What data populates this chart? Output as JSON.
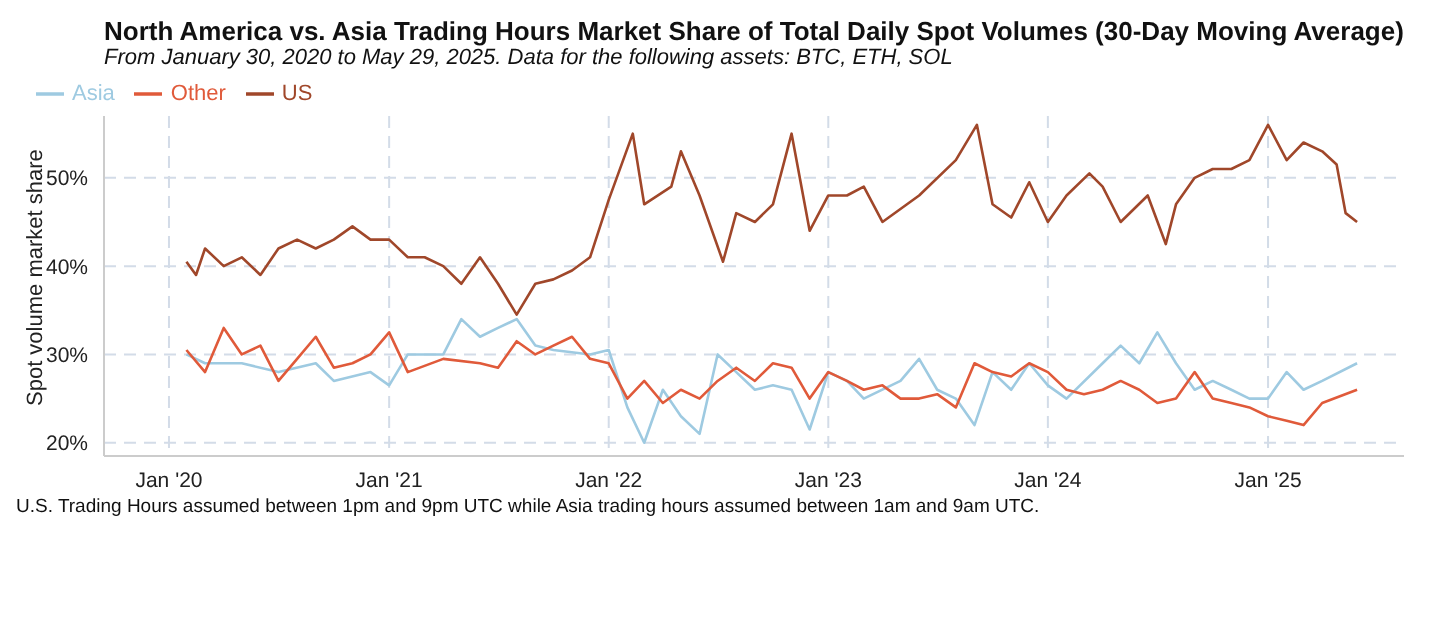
{
  "chart_data": {
    "type": "line",
    "title": "North America vs. Asia Trading Hours Market Share of Total Daily Spot Volumes (30-Day Moving Average)",
    "subtitle": "From January 30, 2020 to May 29, 2025. Data for the following assets: BTC, ETH, SOL",
    "ylabel": "Spot volume market share",
    "annotations": [
      "U.S. Trading Hours assumed between 1pm and 9pm UTC while Asia trading hours assumed between 1am and 9am UTC."
    ],
    "legend": "top left",
    "grid": true,
    "marker": "none",
    "line_style": "solid",
    "xlim": [
      "2019-09-15",
      "2025-08-15"
    ],
    "xticks": [
      {
        "value": "2020-01-01",
        "label": "Jan '20"
      },
      {
        "value": "2021-01-01",
        "label": "Jan '21"
      },
      {
        "value": "2022-01-01",
        "label": "Jan '22"
      },
      {
        "value": "2023-01-01",
        "label": "Jan '23"
      },
      {
        "value": "2024-01-01",
        "label": "Jan '24"
      },
      {
        "value": "2025-01-01",
        "label": "Jan '25"
      }
    ],
    "ylim": [
      18.5,
      57
    ],
    "yticks": [
      {
        "value": 20,
        "label": "20%"
      },
      {
        "value": 30,
        "label": "30%"
      },
      {
        "value": 40,
        "label": "40%"
      },
      {
        "value": 50,
        "label": "50%"
      }
    ],
    "series": [
      {
        "name": "Asia",
        "color": "#9ecae1",
        "x": [
          "2020-01-30",
          "2020-03-01",
          "2020-05-01",
          "2020-07-01",
          "2020-09-01",
          "2020-10-01",
          "2020-12-01",
          "2021-01-01",
          "2021-02-01",
          "2021-04-01",
          "2021-05-01",
          "2021-06-01",
          "2021-07-01",
          "2021-08-01",
          "2021-09-01",
          "2021-10-01",
          "2021-12-01",
          "2022-01-01",
          "2022-02-01",
          "2022-03-01",
          "2022-04-01",
          "2022-05-01",
          "2022-06-01",
          "2022-07-01",
          "2022-08-01",
          "2022-09-01",
          "2022-10-01",
          "2022-11-01",
          "2022-12-01",
          "2023-01-01",
          "2023-02-01",
          "2023-03-01",
          "2023-05-01",
          "2023-06-01",
          "2023-07-01",
          "2023-08-01",
          "2023-09-01",
          "2023-10-01",
          "2023-11-01",
          "2023-12-01",
          "2024-01-01",
          "2024-02-01",
          "2024-04-01",
          "2024-05-01",
          "2024-06-01",
          "2024-07-01",
          "2024-08-01",
          "2024-09-01",
          "2024-10-01",
          "2024-11-01",
          "2024-12-01",
          "2025-01-01",
          "2025-02-01",
          "2025-03-01",
          "2025-04-01",
          "2025-05-29"
        ],
        "values": [
          30,
          29,
          29,
          28,
          29,
          27,
          28,
          26.5,
          30,
          30,
          34,
          32,
          33,
          34,
          31,
          30.5,
          30,
          30.5,
          24,
          20,
          26,
          23,
          21,
          30,
          28,
          26,
          26.5,
          26,
          21.5,
          28,
          27,
          25,
          27,
          29.5,
          26,
          25,
          22,
          28,
          26,
          29,
          26.5,
          25,
          29,
          31,
          29,
          32.5,
          29,
          26,
          27,
          26,
          25,
          25,
          28,
          26,
          27,
          29
        ]
      },
      {
        "name": "Other",
        "color": "#e05a3a",
        "x": [
          "2020-01-30",
          "2020-03-01",
          "2020-04-01",
          "2020-05-01",
          "2020-06-01",
          "2020-07-01",
          "2020-08-01",
          "2020-09-01",
          "2020-10-01",
          "2020-11-01",
          "2020-12-01",
          "2021-01-01",
          "2021-02-01",
          "2021-04-01",
          "2021-06-01",
          "2021-07-01",
          "2021-08-01",
          "2021-09-01",
          "2021-10-01",
          "2021-11-01",
          "2021-12-01",
          "2022-01-01",
          "2022-02-01",
          "2022-03-01",
          "2022-04-01",
          "2022-05-01",
          "2022-06-01",
          "2022-07-01",
          "2022-08-01",
          "2022-09-01",
          "2022-10-01",
          "2022-11-01",
          "2022-12-01",
          "2023-01-01",
          "2023-02-01",
          "2023-03-01",
          "2023-04-01",
          "2023-05-01",
          "2023-06-01",
          "2023-07-01",
          "2023-08-01",
          "2023-09-01",
          "2023-10-01",
          "2023-11-01",
          "2023-12-01",
          "2024-01-01",
          "2024-02-01",
          "2024-03-01",
          "2024-04-01",
          "2024-05-01",
          "2024-06-01",
          "2024-07-01",
          "2024-08-01",
          "2024-09-01",
          "2024-10-01",
          "2024-11-01",
          "2024-12-01",
          "2025-01-01",
          "2025-02-01",
          "2025-03-01",
          "2025-04-01",
          "2025-05-29"
        ],
        "values": [
          30.5,
          28,
          33,
          30,
          31,
          27,
          29.5,
          32,
          28.5,
          29,
          30,
          32.5,
          28,
          29.5,
          29,
          28.5,
          31.5,
          30,
          31,
          32,
          29.5,
          29,
          25,
          27,
          24.5,
          26,
          25,
          27,
          28.5,
          27,
          29,
          28.5,
          25,
          28,
          27,
          26,
          26.5,
          25,
          25,
          25.5,
          24,
          29,
          28,
          27.5,
          29,
          28,
          26,
          25.5,
          26,
          27,
          26,
          24.5,
          25,
          28,
          25,
          24.5,
          24,
          23,
          22.5,
          22,
          24.5,
          26
        ]
      },
      {
        "name": "US",
        "color": "#a0472a",
        "x": [
          "2020-01-30",
          "2020-02-15",
          "2020-03-01",
          "2020-04-01",
          "2020-05-01",
          "2020-06-01",
          "2020-07-01",
          "2020-08-01",
          "2020-09-01",
          "2020-10-01",
          "2020-11-01",
          "2020-12-01",
          "2021-01-01",
          "2021-02-01",
          "2021-03-01",
          "2021-04-01",
          "2021-05-01",
          "2021-06-01",
          "2021-07-01",
          "2021-08-01",
          "2021-09-01",
          "2021-10-01",
          "2021-11-01",
          "2021-12-01",
          "2022-01-01",
          "2022-02-10",
          "2022-03-01",
          "2022-04-15",
          "2022-05-01",
          "2022-06-01",
          "2022-07-10",
          "2022-08-01",
          "2022-09-01",
          "2022-10-01",
          "2022-11-01",
          "2022-12-01",
          "2023-01-01",
          "2023-02-01",
          "2023-03-01",
          "2023-04-01",
          "2023-06-01",
          "2023-08-01",
          "2023-09-05",
          "2023-10-01",
          "2023-11-01",
          "2023-12-01",
          "2024-01-01",
          "2024-02-01",
          "2024-03-10",
          "2024-04-01",
          "2024-05-01",
          "2024-06-15",
          "2024-07-15",
          "2024-08-01",
          "2024-09-01",
          "2024-10-01",
          "2024-11-01",
          "2024-12-01",
          "2025-01-01",
          "2025-02-01",
          "2025-03-01",
          "2025-04-01",
          "2025-04-25",
          "2025-05-10",
          "2025-05-29"
        ],
        "values": [
          40.5,
          39,
          42,
          40,
          41,
          39,
          42,
          43,
          42,
          43,
          44.5,
          43,
          43,
          41,
          41,
          40,
          38,
          41,
          38,
          34.5,
          38,
          38.5,
          39.5,
          41,
          47.5,
          55,
          47,
          49,
          53,
          48,
          40.5,
          46,
          45,
          47,
          55,
          44,
          48,
          48,
          49,
          45,
          48,
          52,
          56,
          47,
          45.5,
          49.5,
          45,
          48,
          50.5,
          49,
          45,
          48,
          42.5,
          47,
          50,
          51,
          51,
          52,
          56,
          52,
          54,
          53,
          51.5,
          46,
          45
        ]
      }
    ]
  }
}
